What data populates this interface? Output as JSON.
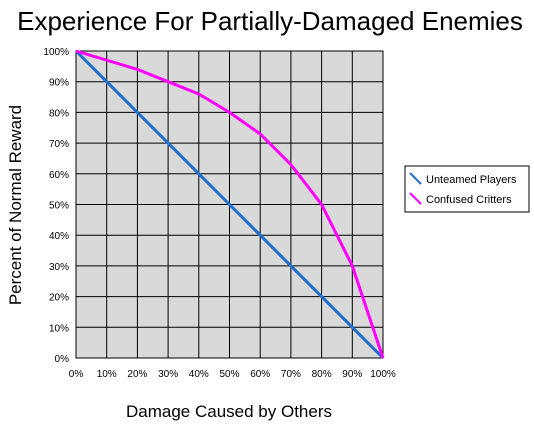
{
  "chart_data": {
    "type": "line",
    "title": "Experience For Partially-Damaged Enemies",
    "xlabel": "Damage Caused by Others",
    "ylabel": "Percent of Normal Reward",
    "xlim": [
      0,
      100
    ],
    "ylim": [
      0,
      100
    ],
    "x_ticks": [
      "0%",
      "10%",
      "20%",
      "30%",
      "40%",
      "50%",
      "60%",
      "70%",
      "80%",
      "90%",
      "100%"
    ],
    "y_ticks": [
      "0%",
      "10%",
      "20%",
      "30%",
      "40%",
      "50%",
      "60%",
      "70%",
      "80%",
      "90%",
      "100%"
    ],
    "grid": true,
    "plot_background": "#d9d9d9",
    "legend_position": "right",
    "x": [
      0,
      10,
      20,
      30,
      40,
      50,
      60,
      70,
      80,
      90,
      100
    ],
    "series": [
      {
        "name": "Unteamed Players",
        "color": "#1f6fd0",
        "values": [
          100,
          90,
          80,
          70,
          60,
          50,
          40,
          30,
          20,
          10,
          0
        ]
      },
      {
        "name": "Confused Critters",
        "color": "#ff00ff",
        "values": [
          100,
          97,
          94,
          90,
          86,
          80,
          73,
          63,
          50,
          30,
          0
        ]
      }
    ]
  }
}
